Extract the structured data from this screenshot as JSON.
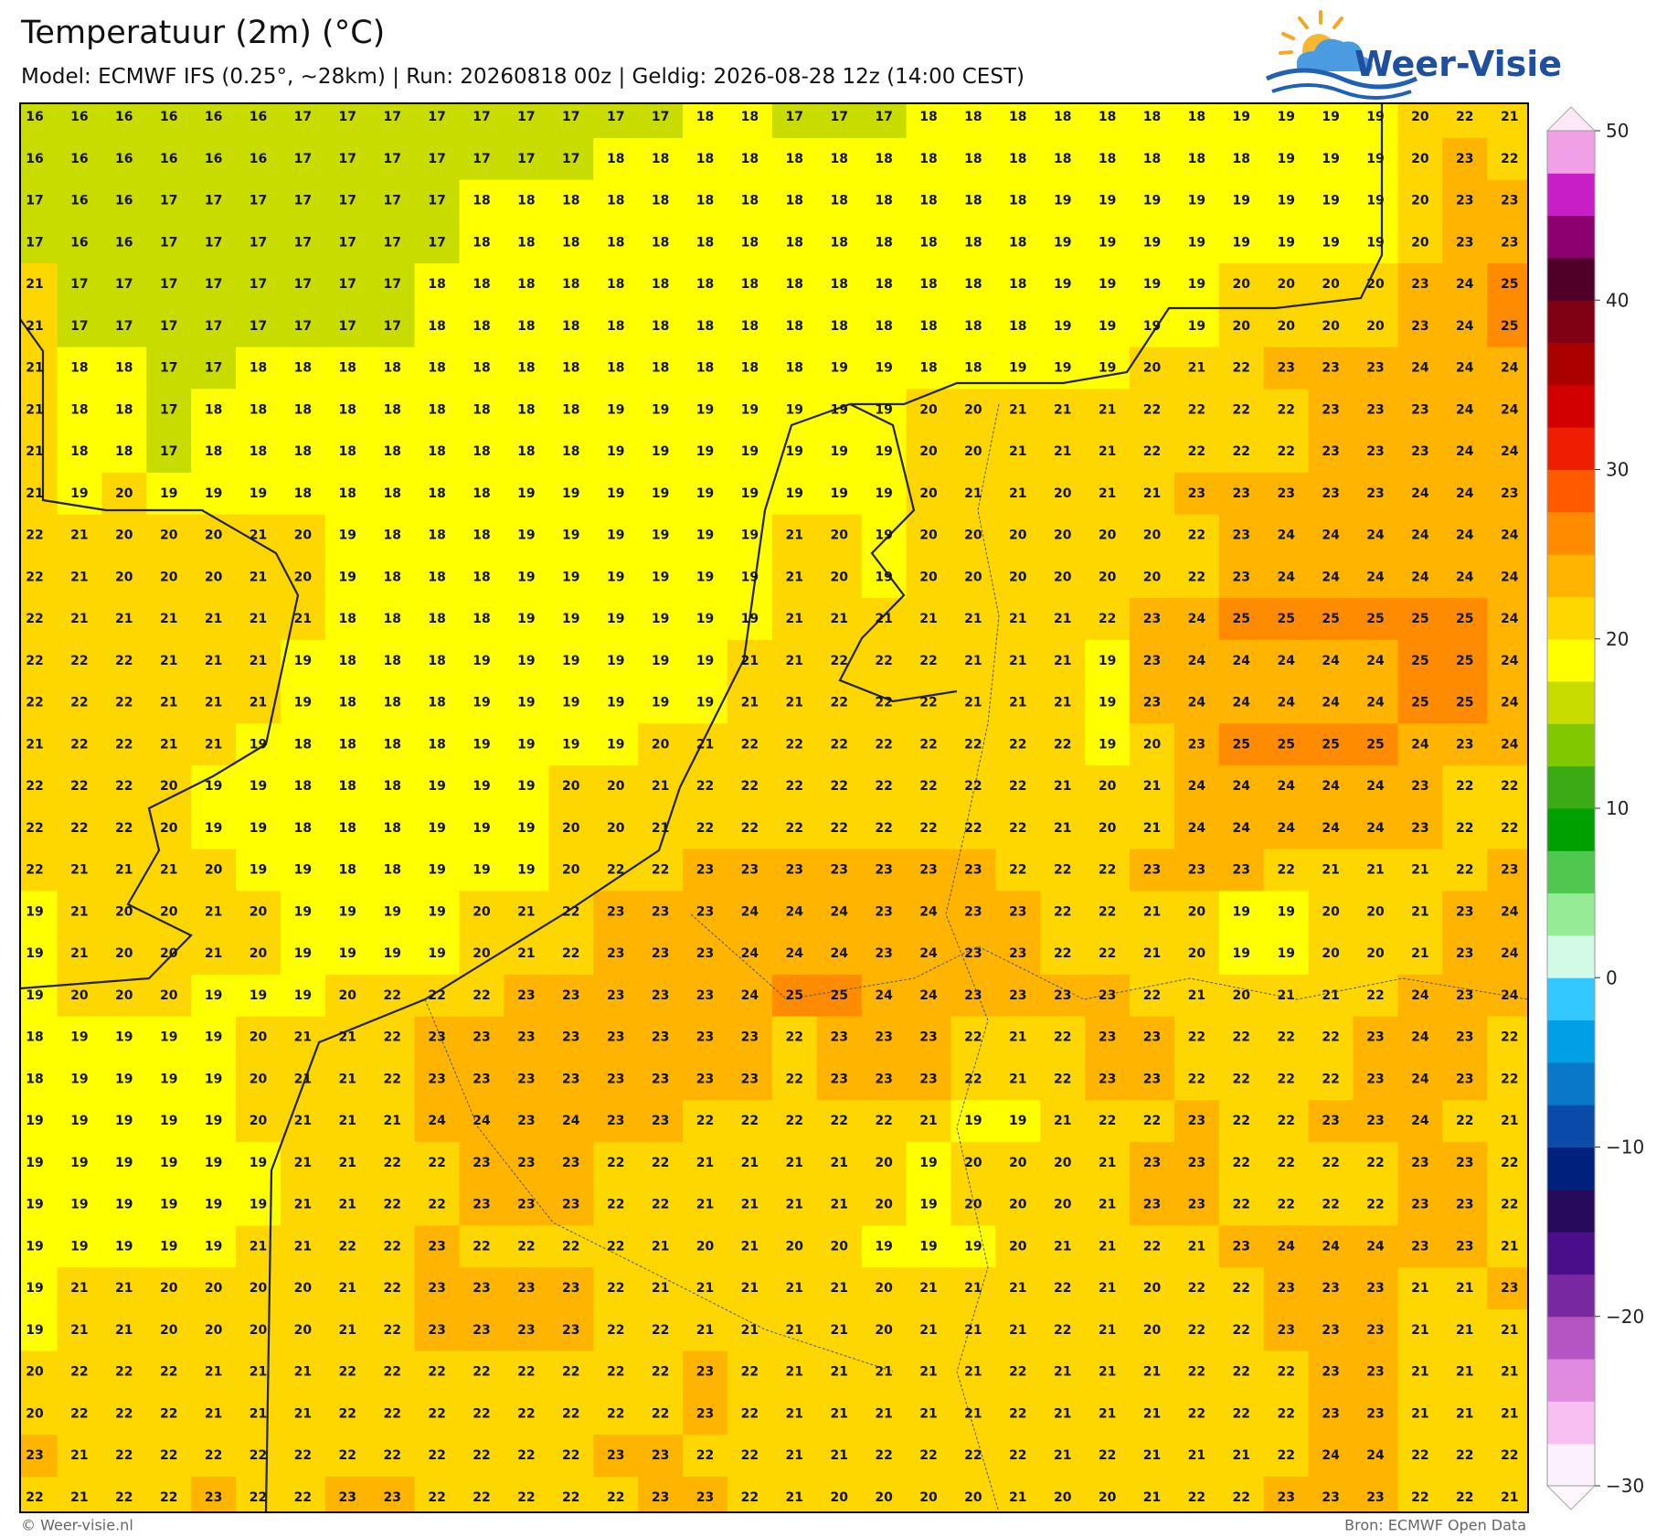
{
  "header": {
    "title": "Temperatuur (2m) (°C)",
    "subtitle": "Model: ECMWF IFS (0.25°, ~28km)  |  Run: 20260818 00z  |  Geldig: 2026-08-28 12z (14:00 CEST)",
    "logo": "Weer-Visie"
  },
  "map": {
    "values": [
      [
        16,
        16,
        16,
        16,
        16,
        16,
        17,
        17,
        17,
        17,
        17,
        17,
        17,
        17,
        17,
        18,
        18,
        17,
        17,
        17,
        18,
        18,
        18,
        18,
        18,
        18,
        18,
        19,
        19,
        19,
        19,
        20,
        22,
        21
      ],
      [
        16,
        16,
        16,
        16,
        16,
        16,
        17,
        17,
        17,
        17,
        17,
        17,
        17,
        18,
        18,
        18,
        18,
        18,
        18,
        18,
        18,
        18,
        18,
        18,
        18,
        18,
        18,
        18,
        19,
        19,
        19,
        20,
        23,
        22
      ],
      [
        17,
        16,
        16,
        17,
        17,
        17,
        17,
        17,
        17,
        17,
        18,
        18,
        18,
        18,
        18,
        18,
        18,
        18,
        18,
        18,
        18,
        18,
        18,
        19,
        19,
        19,
        19,
        19,
        19,
        19,
        19,
        20,
        23,
        23
      ],
      [
        17,
        16,
        16,
        17,
        17,
        17,
        17,
        17,
        17,
        17,
        18,
        18,
        18,
        18,
        18,
        18,
        18,
        18,
        18,
        18,
        18,
        18,
        18,
        19,
        19,
        19,
        19,
        19,
        19,
        19,
        19,
        20,
        23,
        23
      ],
      [
        21,
        17,
        17,
        17,
        17,
        17,
        17,
        17,
        17,
        18,
        18,
        18,
        18,
        18,
        18,
        18,
        18,
        18,
        18,
        18,
        18,
        18,
        18,
        19,
        19,
        19,
        19,
        20,
        20,
        20,
        20,
        23,
        24,
        25
      ],
      [
        21,
        17,
        17,
        17,
        17,
        17,
        17,
        17,
        17,
        18,
        18,
        18,
        18,
        18,
        18,
        18,
        18,
        18,
        18,
        18,
        18,
        18,
        18,
        19,
        19,
        19,
        19,
        20,
        20,
        20,
        20,
        23,
        24,
        25
      ],
      [
        21,
        18,
        18,
        17,
        17,
        18,
        18,
        18,
        18,
        18,
        18,
        18,
        18,
        18,
        18,
        18,
        18,
        18,
        19,
        19,
        18,
        18,
        19,
        19,
        19,
        20,
        21,
        22,
        23,
        23,
        23,
        24,
        24,
        24
      ],
      [
        21,
        18,
        18,
        17,
        18,
        18,
        18,
        18,
        18,
        18,
        18,
        18,
        18,
        19,
        19,
        19,
        19,
        19,
        19,
        19,
        20,
        20,
        21,
        21,
        21,
        22,
        22,
        22,
        22,
        23,
        23,
        23,
        24,
        24
      ],
      [
        21,
        18,
        18,
        17,
        18,
        18,
        18,
        18,
        18,
        18,
        18,
        18,
        18,
        19,
        19,
        19,
        19,
        19,
        19,
        19,
        20,
        20,
        21,
        21,
        21,
        22,
        22,
        22,
        22,
        23,
        23,
        23,
        24,
        24
      ],
      [
        21,
        19,
        20,
        19,
        19,
        19,
        18,
        18,
        18,
        18,
        18,
        19,
        19,
        19,
        19,
        19,
        19,
        19,
        19,
        19,
        20,
        21,
        21,
        20,
        21,
        21,
        23,
        23,
        23,
        23,
        23,
        24,
        24,
        23
      ],
      [
        22,
        21,
        20,
        20,
        20,
        21,
        20,
        19,
        18,
        18,
        18,
        19,
        19,
        19,
        19,
        19,
        19,
        21,
        20,
        19,
        20,
        20,
        20,
        20,
        20,
        20,
        22,
        23,
        24,
        24,
        24,
        24,
        24,
        24
      ],
      [
        22,
        21,
        20,
        20,
        20,
        21,
        20,
        19,
        18,
        18,
        18,
        19,
        19,
        19,
        19,
        19,
        19,
        21,
        20,
        19,
        20,
        20,
        20,
        20,
        20,
        20,
        22,
        23,
        24,
        24,
        24,
        24,
        24,
        24
      ],
      [
        22,
        21,
        21,
        21,
        21,
        21,
        21,
        18,
        18,
        18,
        18,
        19,
        19,
        19,
        19,
        19,
        19,
        21,
        21,
        21,
        21,
        21,
        21,
        21,
        22,
        23,
        24,
        25,
        25,
        25,
        25,
        25,
        25,
        24
      ],
      [
        22,
        22,
        22,
        21,
        21,
        21,
        19,
        18,
        18,
        18,
        19,
        19,
        19,
        19,
        19,
        19,
        21,
        21,
        22,
        22,
        22,
        21,
        21,
        21,
        19,
        23,
        24,
        24,
        24,
        24,
        24,
        25,
        25,
        24
      ],
      [
        22,
        22,
        22,
        21,
        21,
        21,
        19,
        18,
        18,
        18,
        19,
        19,
        19,
        19,
        19,
        19,
        21,
        21,
        22,
        22,
        22,
        21,
        21,
        21,
        19,
        23,
        24,
        24,
        24,
        24,
        24,
        25,
        25,
        24
      ],
      [
        21,
        22,
        22,
        21,
        21,
        19,
        18,
        18,
        18,
        18,
        19,
        19,
        19,
        19,
        20,
        21,
        22,
        22,
        22,
        22,
        22,
        22,
        22,
        22,
        19,
        20,
        23,
        25,
        25,
        25,
        25,
        24,
        23,
        24
      ],
      [
        22,
        22,
        22,
        20,
        19,
        19,
        18,
        18,
        18,
        19,
        19,
        19,
        20,
        20,
        21,
        22,
        22,
        22,
        22,
        22,
        22,
        22,
        22,
        21,
        20,
        21,
        24,
        24,
        24,
        24,
        24,
        23,
        22,
        22
      ],
      [
        22,
        22,
        22,
        20,
        19,
        19,
        18,
        18,
        18,
        19,
        19,
        19,
        20,
        20,
        21,
        22,
        22,
        22,
        22,
        22,
        22,
        22,
        22,
        21,
        20,
        21,
        24,
        24,
        24,
        24,
        24,
        23,
        22,
        22
      ],
      [
        22,
        21,
        21,
        21,
        20,
        19,
        19,
        18,
        18,
        19,
        19,
        19,
        20,
        22,
        22,
        23,
        23,
        23,
        23,
        23,
        23,
        23,
        22,
        22,
        22,
        23,
        23,
        23,
        22,
        21,
        21,
        21,
        22,
        23
      ],
      [
        19,
        21,
        20,
        20,
        21,
        20,
        19,
        19,
        19,
        19,
        20,
        21,
        22,
        23,
        23,
        23,
        24,
        24,
        24,
        23,
        24,
        23,
        23,
        22,
        22,
        21,
        20,
        19,
        19,
        20,
        20,
        21,
        23,
        24
      ],
      [
        19,
        21,
        20,
        20,
        21,
        20,
        19,
        19,
        19,
        19,
        20,
        21,
        22,
        23,
        23,
        23,
        24,
        24,
        24,
        23,
        24,
        23,
        23,
        22,
        22,
        21,
        20,
        19,
        19,
        20,
        20,
        21,
        23,
        24
      ],
      [
        19,
        20,
        20,
        20,
        19,
        19,
        19,
        20,
        22,
        22,
        22,
        23,
        23,
        23,
        23,
        23,
        24,
        25,
        25,
        24,
        24,
        23,
        23,
        23,
        23,
        22,
        21,
        20,
        21,
        21,
        22,
        24,
        23,
        24
      ],
      [
        18,
        19,
        19,
        19,
        19,
        20,
        21,
        21,
        22,
        23,
        23,
        23,
        23,
        23,
        23,
        23,
        23,
        22,
        23,
        23,
        23,
        22,
        21,
        22,
        23,
        23,
        22,
        22,
        22,
        22,
        23,
        24,
        23,
        22
      ],
      [
        18,
        19,
        19,
        19,
        19,
        20,
        21,
        21,
        22,
        23,
        23,
        23,
        23,
        23,
        23,
        23,
        23,
        22,
        23,
        23,
        23,
        22,
        21,
        22,
        23,
        23,
        22,
        22,
        22,
        22,
        23,
        24,
        23,
        22
      ],
      [
        19,
        19,
        19,
        19,
        19,
        20,
        21,
        21,
        21,
        24,
        24,
        23,
        24,
        23,
        23,
        22,
        22,
        22,
        22,
        22,
        21,
        19,
        19,
        21,
        22,
        22,
        23,
        22,
        22,
        23,
        23,
        24,
        22,
        21
      ],
      [
        19,
        19,
        19,
        19,
        19,
        19,
        21,
        21,
        22,
        22,
        23,
        23,
        23,
        22,
        22,
        21,
        21,
        21,
        21,
        20,
        19,
        20,
        20,
        20,
        21,
        23,
        23,
        22,
        22,
        22,
        22,
        23,
        23,
        22
      ],
      [
        19,
        19,
        19,
        19,
        19,
        19,
        21,
        21,
        22,
        22,
        23,
        23,
        23,
        22,
        22,
        21,
        21,
        21,
        21,
        20,
        19,
        20,
        20,
        20,
        21,
        23,
        23,
        22,
        22,
        22,
        22,
        23,
        23,
        22
      ],
      [
        19,
        19,
        19,
        19,
        19,
        21,
        21,
        22,
        22,
        23,
        22,
        22,
        22,
        22,
        21,
        20,
        21,
        20,
        20,
        19,
        19,
        19,
        20,
        21,
        21,
        22,
        21,
        23,
        24,
        24,
        24,
        23,
        23,
        21
      ],
      [
        19,
        21,
        21,
        20,
        20,
        20,
        20,
        21,
        22,
        23,
        23,
        23,
        23,
        22,
        21,
        21,
        21,
        21,
        21,
        20,
        21,
        21,
        21,
        22,
        21,
        20,
        22,
        22,
        23,
        23,
        23,
        21,
        21,
        23
      ],
      [
        19,
        21,
        21,
        20,
        20,
        20,
        20,
        21,
        22,
        23,
        23,
        23,
        23,
        22,
        22,
        21,
        21,
        21,
        21,
        20,
        21,
        21,
        21,
        22,
        21,
        20,
        22,
        22,
        23,
        23,
        23,
        21,
        21,
        21
      ],
      [
        20,
        22,
        22,
        22,
        21,
        21,
        21,
        22,
        22,
        22,
        22,
        22,
        22,
        22,
        22,
        23,
        22,
        21,
        21,
        21,
        21,
        21,
        22,
        21,
        21,
        21,
        22,
        22,
        22,
        23,
        23,
        21,
        21,
        21
      ],
      [
        20,
        22,
        22,
        22,
        21,
        21,
        21,
        22,
        22,
        22,
        22,
        22,
        22,
        22,
        22,
        23,
        22,
        21,
        21,
        21,
        21,
        21,
        22,
        21,
        21,
        21,
        22,
        22,
        22,
        23,
        23,
        21,
        21,
        21
      ],
      [
        23,
        21,
        22,
        22,
        22,
        22,
        22,
        22,
        22,
        22,
        22,
        22,
        22,
        23,
        23,
        22,
        22,
        21,
        21,
        22,
        22,
        22,
        22,
        21,
        22,
        21,
        21,
        21,
        22,
        24,
        24,
        22,
        22,
        22
      ],
      [
        22,
        21,
        22,
        22,
        23,
        22,
        22,
        23,
        23,
        22,
        22,
        22,
        22,
        22,
        23,
        23,
        22,
        21,
        20,
        20,
        20,
        20,
        21,
        20,
        20,
        21,
        22,
        22,
        23,
        23,
        23,
        22,
        22,
        21
      ]
    ]
  },
  "colorbar": {
    "lim": [
      -30,
      50
    ],
    "ticks": [
      50,
      40,
      30,
      20,
      10,
      0,
      {
        "value": -10,
        "label": "−10"
      },
      {
        "value": -20,
        "label": "−20"
      },
      {
        "value": -30,
        "label": "−30"
      }
    ],
    "colors": [
      "#fdf0fd",
      "#f8c0f2",
      "#e08ae0",
      "#b455c3",
      "#7828a0",
      "#4a0e8a",
      "#280a5c",
      "#00207e",
      "#0a4aa8",
      "#0a78c8",
      "#00a0e6",
      "#33c8ff",
      "#d2fae6",
      "#96eb96",
      "#50c850",
      "#00a000",
      "#3caa14",
      "#82c800",
      "#c8dc00",
      "#ffff00",
      "#ffd700",
      "#ffb400",
      "#ff8c00",
      "#ff5a00",
      "#f01e00",
      "#d20000",
      "#aa0000",
      "#800014",
      "#500028",
      "#8c0070",
      "#c81ec8",
      "#f0a0e6"
    ]
  },
  "footer": {
    "left": "© Weer-visie.nl",
    "right": "Bron: ECMWF Open Data"
  }
}
